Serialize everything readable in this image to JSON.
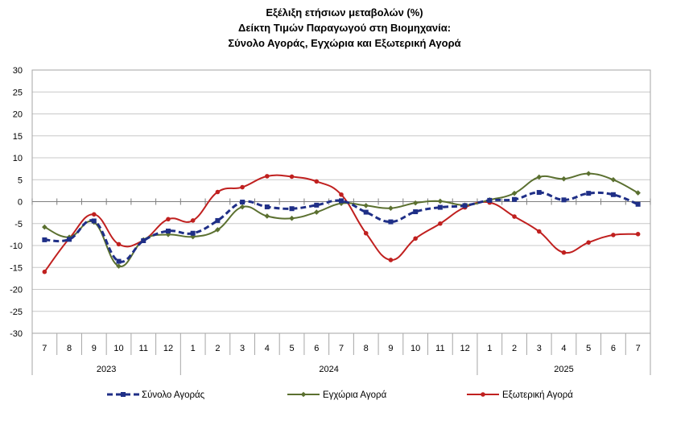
{
  "chart_data": {
    "type": "line",
    "title_lines": [
      "Εξέλιξη ετήσιων μεταβολών (%)",
      "Δείκτη Τιμών Παραγωγού στη Βιομηχανία:",
      "Σύνολο Αγοράς, Εγχώρια και Εξωτερική Αγορά"
    ],
    "xlabel": "",
    "ylabel": "",
    "ylim": [
      -30,
      30
    ],
    "yticks": [
      30,
      25,
      20,
      15,
      10,
      5,
      0,
      -5,
      -10,
      -15,
      -20,
      -25,
      -30
    ],
    "months": [
      "7",
      "8",
      "9",
      "10",
      "11",
      "12",
      "1",
      "2",
      "3",
      "4",
      "5",
      "6",
      "7",
      "8",
      "9",
      "10",
      "11",
      "12",
      "1",
      "2",
      "3",
      "4",
      "5",
      "6",
      "7"
    ],
    "years": [
      {
        "label": "2023",
        "start": 0,
        "end": 6
      },
      {
        "label": "2024",
        "start": 6,
        "end": 18
      },
      {
        "label": "2025",
        "start": 18,
        "end": 25
      }
    ],
    "grid": true,
    "legend_position": "bottom",
    "series": [
      {
        "name": "Σύνολο Αγοράς",
        "color": "#1f2f87",
        "style": "dashed-square",
        "values": [
          -8.7,
          -8.6,
          -4.4,
          -13.6,
          -8.9,
          -6.7,
          -7.2,
          -4.3,
          -0.1,
          -1.2,
          -1.6,
          -0.8,
          0.2,
          -2.4,
          -4.6,
          -2.3,
          -1.3,
          -0.9,
          0.3,
          0.5,
          2.1,
          0.4,
          1.9,
          1.6,
          -0.6
        ]
      },
      {
        "name": "Εγχώρια Αγορά",
        "color": "#5b7030",
        "style": "solid-diamond",
        "values": [
          -5.8,
          -8.1,
          -4.7,
          -14.7,
          -8.7,
          -7.5,
          -8.0,
          -6.4,
          -1.2,
          -3.3,
          -3.8,
          -2.4,
          -0.4,
          -0.9,
          -1.5,
          -0.3,
          0.1,
          -0.8,
          0.4,
          1.9,
          5.6,
          5.2,
          6.4,
          5.0,
          2.0
        ]
      },
      {
        "name": "Εξωτερική Αγορά",
        "color": "#c0201f",
        "style": "solid-circle",
        "values": [
          -16.0,
          -8.4,
          -2.9,
          -9.7,
          -8.8,
          -4.0,
          -4.3,
          2.2,
          3.3,
          5.8,
          5.7,
          4.6,
          1.6,
          -7.2,
          -13.3,
          -8.4,
          -5.0,
          -1.3,
          -0.2,
          -3.4,
          -6.8,
          -11.6,
          -9.3,
          -7.6,
          -7.4
        ]
      }
    ]
  }
}
